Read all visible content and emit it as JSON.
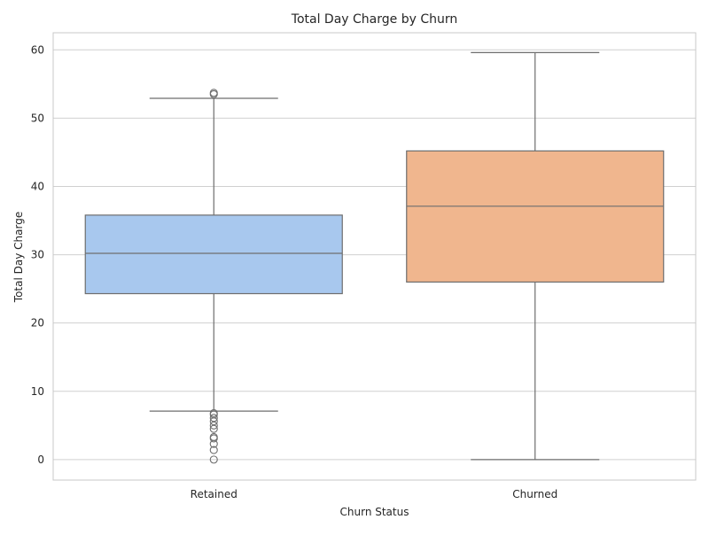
{
  "chart_data": {
    "type": "box",
    "title": "Total Day Charge by Churn",
    "xlabel": "Churn Status",
    "ylabel": "Total Day Charge",
    "categories": [
      "Retained",
      "Churned"
    ],
    "ylim": [
      -3,
      62.5
    ],
    "yticks": [
      0,
      10,
      20,
      30,
      40,
      50,
      60
    ],
    "grid": true,
    "colors": {
      "Retained": "#a8c8ee",
      "Churned": "#f0b68e",
      "lines": "#6e6e6e",
      "grid": "#d0d0d0",
      "frame": "#c8c8c8"
    },
    "boxes": [
      {
        "category": "Retained",
        "whisker_low": 7.1,
        "q1": 24.3,
        "median": 30.2,
        "q3": 35.8,
        "whisker_high": 52.9,
        "outliers": [
          0.0,
          1.4,
          2.3,
          3.1,
          3.3,
          4.5,
          5.0,
          5.6,
          6.1,
          6.6,
          6.8,
          53.5,
          53.7
        ]
      },
      {
        "category": "Churned",
        "whisker_low": 0.0,
        "q1": 26.0,
        "median": 37.1,
        "q3": 45.2,
        "whisker_high": 59.6,
        "outliers": []
      }
    ]
  }
}
